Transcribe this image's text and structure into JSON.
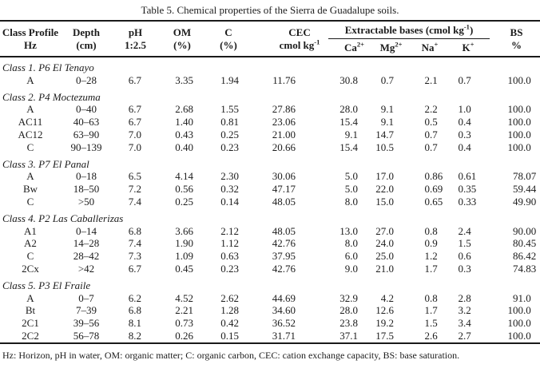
{
  "caption": "Table 5. Chemical properties of the Sierra de Guadalupe soils.",
  "footnote": "Hz: Horizon, pH in water, OM: organic matter; C: organic carbon, CEC: cation exchange capacity, BS: base saturation.",
  "table": {
    "plain_columns": [
      {
        "id": "hz",
        "line1": "Class Profile",
        "line2": "Hz"
      },
      {
        "id": "depth",
        "line1": "Depth",
        "line2": "(cm)"
      },
      {
        "id": "ph",
        "line1": "pH",
        "line2": "1:2.5"
      },
      {
        "id": "om",
        "line1": "OM",
        "line2": "(%)"
      },
      {
        "id": "c",
        "line1": "C",
        "line2": "(%)"
      },
      {
        "id": "cec",
        "line1": "CEC",
        "line2": "cmol kg",
        "line2_sup": "-1"
      }
    ],
    "bases_group": {
      "label_pre": "Extractable bases (cmol kg",
      "label_sup": "-1",
      "label_post": ")",
      "columns": [
        {
          "id": "ca",
          "base": "Ca",
          "sup": "2+"
        },
        {
          "id": "mg",
          "base": "Mg",
          "sup": "2+"
        },
        {
          "id": "na",
          "base": "Na",
          "sup": "+"
        },
        {
          "id": "k",
          "base": "K",
          "sup": "+"
        }
      ]
    },
    "bs_column": {
      "id": "bs",
      "line1": "BS",
      "line2": "%"
    },
    "rows": [
      {
        "type": "group",
        "label": "Class 1. P6 El Tenayo"
      },
      {
        "type": "data",
        "hz": "A",
        "depth": "0–28",
        "ph": "6.7",
        "om": "3.35",
        "c": "1.94",
        "cec": "11.76",
        "ca": "30.8",
        "mg": "0.7",
        "na": "2.1",
        "k": "0.7",
        "bs": "100.0"
      },
      {
        "type": "group",
        "label": "Class 2. P4 Moctezuma"
      },
      {
        "type": "data",
        "hz": "A",
        "depth": "0–40",
        "ph": "6.7",
        "om": "2.68",
        "c": "1.55",
        "cec": "27.86",
        "ca": "28.0",
        "mg": "9.1",
        "na": "2.2",
        "k": "1.0",
        "bs": "100.0"
      },
      {
        "type": "data",
        "hz": "AC11",
        "depth": "40–63",
        "ph": "6.7",
        "om": "1.40",
        "c": "0.81",
        "cec": "23.06",
        "ca": "15.4",
        "mg": "9.1",
        "na": "0.5",
        "k": "0.4",
        "bs": "100.0"
      },
      {
        "type": "data",
        "hz": "AC12",
        "depth": "63–90",
        "ph": "7.0",
        "om": "0.43",
        "c": "0.25",
        "cec": "21.00",
        "ca": "9.1",
        "mg": "14.7",
        "na": "0.7",
        "k": "0.3",
        "bs": "100.0"
      },
      {
        "type": "data",
        "hz": "C",
        "depth": "90–139",
        "ph": "7.0",
        "om": "0.40",
        "c": "0.23",
        "cec": "20.66",
        "ca": "15.4",
        "mg": "10.5",
        "na": "0.7",
        "k": "0.4",
        "bs": "100.0"
      },
      {
        "type": "group",
        "label": "Class 3. P7 El Panal"
      },
      {
        "type": "data",
        "hz": "A",
        "depth": "0–18",
        "ph": "6.5",
        "om": "4.14",
        "c": "2.30",
        "cec": "30.06",
        "ca": "5.0",
        "mg": "17.0",
        "na": "0.86",
        "k": "0.61",
        "bs": "78.07"
      },
      {
        "type": "data",
        "hz": "Bw",
        "depth": "18–50",
        "ph": "7.2",
        "om": "0.56",
        "c": "0.32",
        "cec": "47.17",
        "ca": "5.0",
        "mg": "22.0",
        "na": "0.69",
        "k": "0.35",
        "bs": "59.44"
      },
      {
        "type": "data",
        "hz": "C",
        "depth": ">50",
        "ph": "7.4",
        "om": "0.25",
        "c": "0.14",
        "cec": "48.05",
        "ca": "8.0",
        "mg": "15.0",
        "na": "0.65",
        "k": "0.33",
        "bs": "49.90"
      },
      {
        "type": "group",
        "label": "Class 4. P2 Las Caballerizas"
      },
      {
        "type": "data",
        "hz": "A1",
        "depth": "0–14",
        "ph": "6.8",
        "om": "3.66",
        "c": "2.12",
        "cec": "48.05",
        "ca": "13.0",
        "mg": "27.0",
        "na": "0.8",
        "k": "2.4",
        "bs": "90.00"
      },
      {
        "type": "data",
        "hz": "A2",
        "depth": "14–28",
        "ph": "7.4",
        "om": "1.90",
        "c": "1.12",
        "cec": "42.76",
        "ca": "8.0",
        "mg": "24.0",
        "na": "0.9",
        "k": "1.5",
        "bs": "80.45"
      },
      {
        "type": "data",
        "hz": "C",
        "depth": "28–42",
        "ph": "7.3",
        "om": "1.09",
        "c": "0.63",
        "cec": "37.95",
        "ca": "6.0",
        "mg": "25.0",
        "na": "1.2",
        "k": "0.6",
        "bs": "86.42"
      },
      {
        "type": "data",
        "hz": "2Cx",
        "depth": ">42",
        "ph": "6.7",
        "om": "0.45",
        "c": "0.23",
        "cec": "42.76",
        "ca": "9.0",
        "mg": "21.0",
        "na": "1.7",
        "k": "0.3",
        "bs": "74.83"
      },
      {
        "type": "group",
        "label": "Class 5. P3 El Fraile"
      },
      {
        "type": "data",
        "hz": "A",
        "depth": "0–7",
        "ph": "6.2",
        "om": "4.52",
        "c": "2.62",
        "cec": "44.69",
        "ca": "32.9",
        "mg": "4.2",
        "na": "0.8",
        "k": "2.8",
        "bs": "91.0"
      },
      {
        "type": "data",
        "hz": "Bt",
        "depth": "7–39",
        "ph": "6.8",
        "om": "2.21",
        "c": "1.28",
        "cec": "34.60",
        "ca": "28.0",
        "mg": "12.6",
        "na": "1.7",
        "k": "3.2",
        "bs": "100.0"
      },
      {
        "type": "data",
        "hz": "2C1",
        "depth": "39–56",
        "ph": "8.1",
        "om": "0.73",
        "c": "0.42",
        "cec": "36.52",
        "ca": "23.8",
        "mg": "19.2",
        "na": "1.5",
        "k": "3.4",
        "bs": "100.0"
      },
      {
        "type": "data",
        "hz": "2C2",
        "depth": "56–78",
        "ph": "8.2",
        "om": "0.26",
        "c": "0.15",
        "cec": "31.71",
        "ca": "37.1",
        "mg": "17.5",
        "na": "2.6",
        "k": "2.7",
        "bs": "100.0"
      }
    ]
  }
}
